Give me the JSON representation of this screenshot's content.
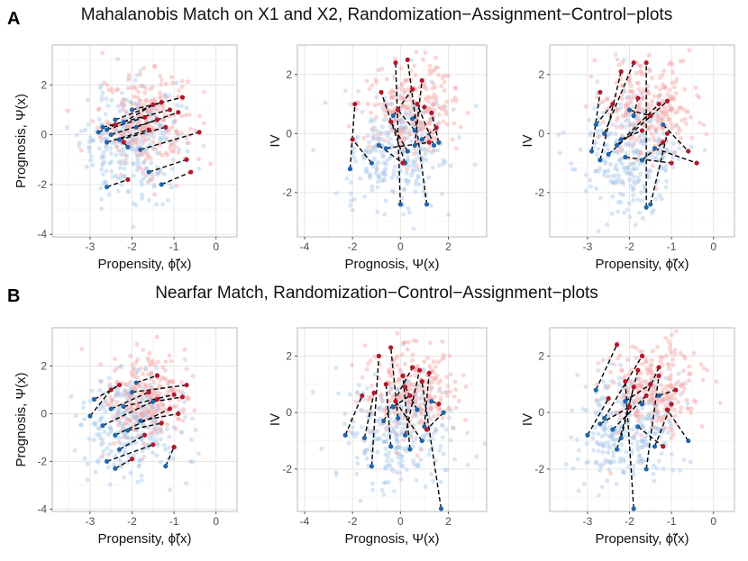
{
  "figure": {
    "rows": [
      {
        "letter": "A",
        "title": "Mahalanobis Match on X1 and X2, Randomization−Assignment−Control−plots"
      },
      {
        "letter": "B",
        "title": "Nearfar Match, Randomization−Control−Assignment−plots"
      }
    ]
  },
  "colors": {
    "treated_background": "#f4a7a7",
    "control_background": "#a9c8e8",
    "treated_matched": "#b2182b",
    "control_matched": "#2166ac",
    "match_line": "#000000"
  },
  "chart_data": [
    {
      "id": "A1",
      "type": "scatter",
      "xlabel": "Propensity, ϕ̃(x)",
      "ylabel": "Prognosis, Ψ(x)",
      "xlim": [
        -3.9,
        0.5
      ],
      "ylim": [
        -4.1,
        3.6
      ],
      "xticks": [
        -3,
        -2,
        -1,
        0
      ],
      "yticks": [
        -4,
        -2,
        0,
        2
      ],
      "cloud": {
        "treated_center": [
          -1.7,
          0.6
        ],
        "control_center": [
          -2.0,
          -0.4
        ],
        "n": 260
      },
      "pairs": [
        {
          "control": [
            -2.6,
            0.2
          ],
          "treated": [
            -1.7,
            0.7
          ]
        },
        {
          "control": [
            -2.5,
            0.0
          ],
          "treated": [
            -1.4,
            0.6
          ]
        },
        {
          "control": [
            -2.7,
            0.3
          ],
          "treated": [
            -1.1,
            1.0
          ]
        },
        {
          "control": [
            -2.3,
            -0.2
          ],
          "treated": [
            -1.2,
            0.3
          ]
        },
        {
          "control": [
            -2.0,
            1.0
          ],
          "treated": [
            -0.8,
            1.5
          ]
        },
        {
          "control": [
            -2.4,
            0.6
          ],
          "treated": [
            -1.3,
            1.3
          ]
        },
        {
          "control": [
            -1.9,
            0.3
          ],
          "treated": [
            -0.9,
            0.9
          ]
        },
        {
          "control": [
            -2.6,
            -0.3
          ],
          "treated": [
            -1.6,
            0.2
          ]
        },
        {
          "control": [
            -1.8,
            -0.6
          ],
          "treated": [
            -0.4,
            0.1
          ]
        },
        {
          "control": [
            -2.2,
            0.5
          ],
          "treated": [
            -1.5,
            1.2
          ]
        },
        {
          "control": [
            -1.6,
            -1.5
          ],
          "treated": [
            -0.7,
            -1.0
          ]
        },
        {
          "control": [
            -1.3,
            -2.0
          ],
          "treated": [
            -0.6,
            -1.5
          ]
        },
        {
          "control": [
            -2.6,
            -2.1
          ],
          "treated": [
            -2.1,
            -1.8
          ]
        },
        {
          "control": [
            -2.8,
            0.1
          ],
          "treated": [
            -2.4,
            0.4
          ]
        },
        {
          "control": [
            -2.1,
            -0.5
          ],
          "treated": [
            -2.2,
            -0.3
          ]
        }
      ]
    },
    {
      "id": "A2",
      "type": "scatter",
      "xlabel": "Prognosis, Ψ(x)",
      "ylabel": "IV",
      "xlim": [
        -4.3,
        3.6
      ],
      "ylim": [
        -3.5,
        3.0
      ],
      "xticks": [
        -4,
        -2,
        0,
        2
      ],
      "yticks": [
        -2,
        0,
        2
      ],
      "cloud": {
        "treated_center": [
          0.5,
          0.8
        ],
        "control_center": [
          -0.2,
          -0.7
        ],
        "n": 260
      },
      "pairs": [
        {
          "control": [
            -2.1,
            -1.2
          ],
          "treated": [
            -1.9,
            1.0
          ]
        },
        {
          "control": [
            -1.2,
            -1.0
          ],
          "treated": [
            -2.0,
            -0.2
          ]
        },
        {
          "control": [
            0.0,
            -2.4
          ],
          "treated": [
            -0.2,
            2.4
          ]
        },
        {
          "control": [
            1.1,
            -2.4
          ],
          "treated": [
            0.3,
            2.5
          ]
        },
        {
          "control": [
            0.6,
            -0.4
          ],
          "treated": [
            0.9,
            1.8
          ]
        },
        {
          "control": [
            -0.3,
            0.6
          ],
          "treated": [
            0.5,
            1.5
          ]
        },
        {
          "control": [
            0.2,
            -1.0
          ],
          "treated": [
            -0.8,
            1.4
          ]
        },
        {
          "control": [
            1.4,
            -0.4
          ],
          "treated": [
            0.7,
            1.0
          ]
        },
        {
          "control": [
            0.5,
            0.5
          ],
          "treated": [
            1.0,
            0.9
          ]
        },
        {
          "control": [
            -0.6,
            -0.5
          ],
          "treated": [
            1.2,
            -0.3
          ]
        },
        {
          "control": [
            0.3,
            -0.6
          ],
          "treated": [
            -0.4,
            0.4
          ]
        },
        {
          "control": [
            0.9,
            -0.2
          ],
          "treated": [
            1.5,
            0.2
          ]
        },
        {
          "control": [
            -0.9,
            -0.4
          ],
          "treated": [
            0.1,
            -1.0
          ]
        },
        {
          "control": [
            0.6,
            0.1
          ],
          "treated": [
            -0.1,
            0.8
          ]
        },
        {
          "control": [
            1.6,
            -0.3
          ],
          "treated": [
            1.3,
            0.7
          ]
        }
      ]
    },
    {
      "id": "A3",
      "type": "scatter",
      "xlabel": "Propensity, ϕ̃(x)",
      "ylabel": "IV",
      "xlim": [
        -3.9,
        0.5
      ],
      "ylim": [
        -3.5,
        3.0
      ],
      "xticks": [
        -3,
        -2,
        -1,
        0
      ],
      "yticks": [
        -2,
        0,
        2
      ],
      "cloud": {
        "treated_center": [
          -1.5,
          0.8
        ],
        "control_center": [
          -2.0,
          -0.7
        ],
        "n": 260
      },
      "pairs": [
        {
          "control": [
            -2.9,
            -0.6
          ],
          "treated": [
            -2.7,
            1.4
          ]
        },
        {
          "control": [
            -2.7,
            -0.9
          ],
          "treated": [
            -2.2,
            2.1
          ]
        },
        {
          "control": [
            -2.6,
            0.0
          ],
          "treated": [
            -1.9,
            2.4
          ]
        },
        {
          "control": [
            -1.6,
            -2.5
          ],
          "treated": [
            -1.6,
            2.4
          ]
        },
        {
          "control": [
            -1.5,
            -2.4
          ],
          "treated": [
            -1.1,
            0.0
          ]
        },
        {
          "control": [
            -2.3,
            -0.4
          ],
          "treated": [
            -1.3,
            1.0
          ]
        },
        {
          "control": [
            -1.9,
            0.6
          ],
          "treated": [
            -1.8,
            1.2
          ]
        },
        {
          "control": [
            -2.1,
            -0.8
          ],
          "treated": [
            -1.0,
            -1.0
          ]
        },
        {
          "control": [
            -2.8,
            0.3
          ],
          "treated": [
            -2.4,
            1.0
          ]
        },
        {
          "control": [
            -1.2,
            0.3
          ],
          "treated": [
            -0.6,
            -0.6
          ]
        },
        {
          "control": [
            -1.4,
            -0.5
          ],
          "treated": [
            -0.4,
            -1.0
          ]
        },
        {
          "control": [
            -2.0,
            0.8
          ],
          "treated": [
            -1.5,
            0.6
          ]
        },
        {
          "control": [
            -2.2,
            -0.2
          ],
          "treated": [
            -1.7,
            0.1
          ]
        },
        {
          "control": [
            -1.7,
            -0.9
          ],
          "treated": [
            -1.2,
            -0.3
          ]
        },
        {
          "control": [
            -2.5,
            -0.7
          ],
          "treated": [
            -1.1,
            1.1
          ]
        }
      ]
    },
    {
      "id": "B1",
      "type": "scatter",
      "xlabel": "Propensity, ϕ̃(x)",
      "ylabel": "Prognosis, Ψ(x)",
      "xlim": [
        -3.9,
        0.5
      ],
      "ylim": [
        -4.1,
        3.6
      ],
      "xticks": [
        -3,
        -2,
        -1,
        0
      ],
      "yticks": [
        -4,
        -2,
        0,
        2
      ],
      "cloud": {
        "treated_center": [
          -1.7,
          0.6
        ],
        "control_center": [
          -2.0,
          -0.4
        ],
        "n": 260
      },
      "pairs": [
        {
          "control": [
            -3.0,
            -0.1
          ],
          "treated": [
            -2.5,
            1.0
          ]
        },
        {
          "control": [
            -2.7,
            -0.5
          ],
          "treated": [
            -1.4,
            0.6
          ]
        },
        {
          "control": [
            -2.4,
            -0.9
          ],
          "treated": [
            -1.1,
            0.2
          ]
        },
        {
          "control": [
            -2.6,
            -2.0
          ],
          "treated": [
            -1.5,
            -1.3
          ]
        },
        {
          "control": [
            -2.4,
            -2.3
          ],
          "treated": [
            -2.0,
            -1.9
          ]
        },
        {
          "control": [
            -2.0,
            0.9
          ],
          "treated": [
            -0.7,
            1.2
          ]
        },
        {
          "control": [
            -2.2,
            0.3
          ],
          "treated": [
            -1.0,
            0.8
          ]
        },
        {
          "control": [
            -2.5,
            0.2
          ],
          "treated": [
            -1.6,
            0.9
          ]
        },
        {
          "control": [
            -1.8,
            -0.3
          ],
          "treated": [
            -0.9,
            0.0
          ]
        },
        {
          "control": [
            -2.1,
            -0.7
          ],
          "treated": [
            -1.3,
            -0.4
          ]
        },
        {
          "control": [
            -1.2,
            -2.2
          ],
          "treated": [
            -1.0,
            -1.4
          ]
        },
        {
          "control": [
            -2.9,
            0.6
          ],
          "treated": [
            -2.3,
            1.2
          ]
        },
        {
          "control": [
            -1.9,
            1.3
          ],
          "treated": [
            -1.4,
            1.6
          ]
        },
        {
          "control": [
            -2.3,
            -1.5
          ],
          "treated": [
            -1.7,
            -0.9
          ]
        },
        {
          "control": [
            -1.5,
            0.5
          ],
          "treated": [
            -0.8,
            0.7
          ]
        }
      ]
    },
    {
      "id": "B2",
      "type": "scatter",
      "xlabel": "Prognosis, Ψ(x)",
      "ylabel": "IV",
      "xlim": [
        -4.3,
        3.6
      ],
      "ylim": [
        -3.5,
        3.0
      ],
      "xticks": [
        -4,
        -2,
        0,
        2
      ],
      "yticks": [
        -2,
        0,
        2
      ],
      "cloud": {
        "treated_center": [
          0.5,
          0.8
        ],
        "control_center": [
          -0.2,
          -0.7
        ],
        "n": 260
      },
      "pairs": [
        {
          "control": [
            -2.3,
            -0.8
          ],
          "treated": [
            -1.6,
            0.6
          ]
        },
        {
          "control": [
            -1.2,
            -1.9
          ],
          "treated": [
            -0.9,
            2.0
          ]
        },
        {
          "control": [
            1.7,
            -3.4
          ],
          "treated": [
            0.9,
            1.1
          ]
        },
        {
          "control": [
            -0.1,
            -0.2
          ],
          "treated": [
            -0.4,
            2.3
          ]
        },
        {
          "control": [
            0.4,
            -1.3
          ],
          "treated": [
            0.1,
            1.3
          ]
        },
        {
          "control": [
            -0.7,
            -0.3
          ],
          "treated": [
            0.5,
            1.6
          ]
        },
        {
          "control": [
            1.0,
            -0.5
          ],
          "treated": [
            1.2,
            1.4
          ]
        },
        {
          "control": [
            -0.4,
            -1.2
          ],
          "treated": [
            -0.6,
            1.0
          ]
        },
        {
          "control": [
            0.7,
            0.1
          ],
          "treated": [
            0.2,
            0.9
          ]
        },
        {
          "control": [
            1.3,
            0.4
          ],
          "treated": [
            1.6,
            0.3
          ]
        },
        {
          "control": [
            -1.5,
            -0.9
          ],
          "treated": [
            -1.1,
            0.7
          ]
        },
        {
          "control": [
            0.2,
            -0.8
          ],
          "treated": [
            0.8,
            1.5
          ]
        },
        {
          "control": [
            1.8,
            0.0
          ],
          "treated": [
            1.1,
            -0.6
          ]
        },
        {
          "control": [
            -0.3,
            0.2
          ],
          "treated": [
            0.4,
            0.6
          ]
        },
        {
          "control": [
            0.9,
            -1.0
          ],
          "treated": [
            -0.2,
            0.4
          ]
        }
      ]
    },
    {
      "id": "B3",
      "type": "scatter",
      "xlabel": "Propensity, ϕ̃(x)",
      "ylabel": "IV",
      "xlim": [
        -3.9,
        0.5
      ],
      "ylim": [
        -3.5,
        3.0
      ],
      "xticks": [
        -3,
        -2,
        -1,
        0
      ],
      "yticks": [
        -2,
        0,
        2
      ],
      "cloud": {
        "treated_center": [
          -1.5,
          0.8
        ],
        "control_center": [
          -2.0,
          -0.7
        ],
        "n": 260
      },
      "pairs": [
        {
          "control": [
            -3.0,
            -0.8
          ],
          "treated": [
            -2.5,
            0.5
          ]
        },
        {
          "control": [
            -2.8,
            0.8
          ],
          "treated": [
            -2.3,
            2.4
          ]
        },
        {
          "control": [
            -1.9,
            -3.4
          ],
          "treated": [
            -2.1,
            1.1
          ]
        },
        {
          "control": [
            -2.6,
            -0.2
          ],
          "treated": [
            -1.7,
            2.0
          ]
        },
        {
          "control": [
            -1.6,
            -2.0
          ],
          "treated": [
            -1.3,
            1.3
          ]
        },
        {
          "control": [
            -2.2,
            -0.9
          ],
          "treated": [
            -1.8,
            1.5
          ]
        },
        {
          "control": [
            -1.3,
            0.6
          ],
          "treated": [
            -0.9,
            0.8
          ]
        },
        {
          "control": [
            -0.6,
            -1.0
          ],
          "treated": [
            -1.1,
            0.1
          ]
        },
        {
          "control": [
            -2.1,
            0.4
          ],
          "treated": [
            -1.5,
            1.0
          ]
        },
        {
          "control": [
            -1.8,
            -0.5
          ],
          "treated": [
            -1.2,
            -1.2
          ]
        },
        {
          "control": [
            -2.4,
            -0.6
          ],
          "treated": [
            -1.6,
            0.6
          ]
        },
        {
          "control": [
            -1.4,
            -1.2
          ],
          "treated": [
            -1.0,
            0.3
          ]
        },
        {
          "control": [
            -2.7,
            -0.4
          ],
          "treated": [
            -2.0,
            0.2
          ]
        },
        {
          "control": [
            -1.7,
            0.3
          ],
          "treated": [
            -1.3,
            1.6
          ]
        },
        {
          "control": [
            -2.3,
            -1.3
          ],
          "treated": [
            -1.9,
            0.9
          ]
        }
      ]
    }
  ]
}
